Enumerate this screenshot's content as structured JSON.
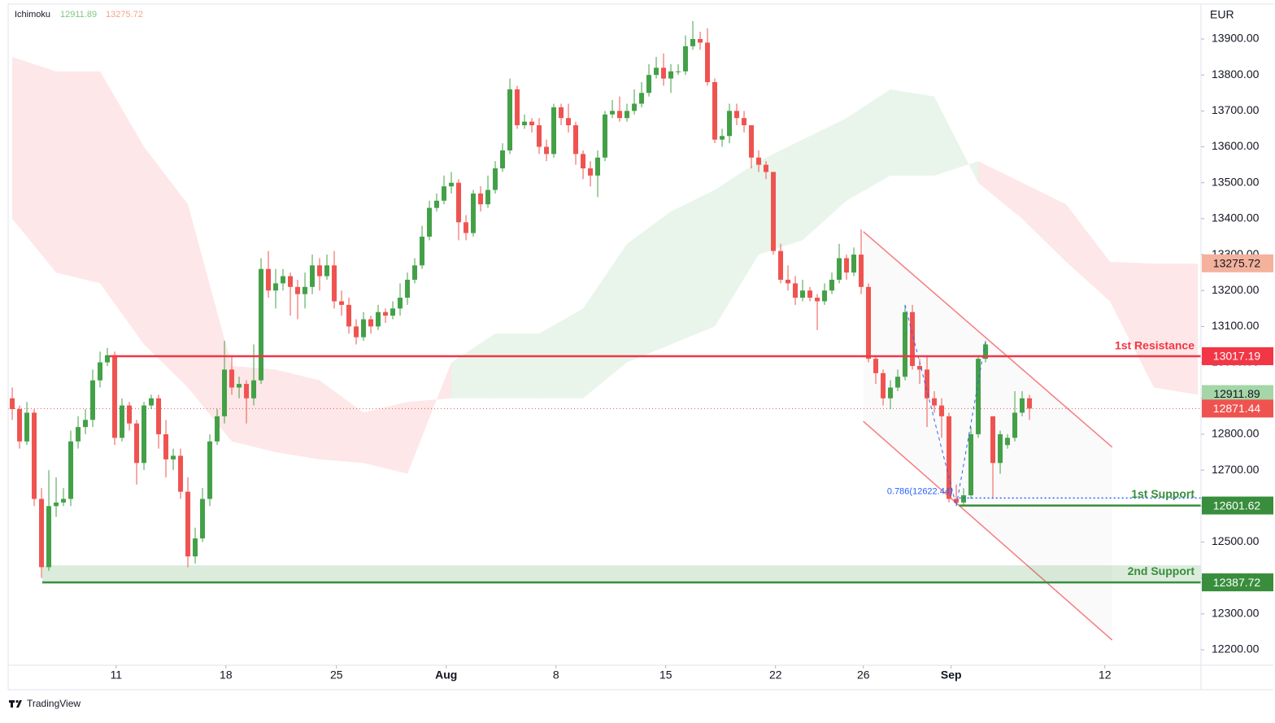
{
  "chart_data": {
    "type": "candlestick",
    "currency": "EUR",
    "legend": {
      "name": "Ichimoku"
    },
    "ylim": [
      12157,
      13997.3
    ],
    "yticks": [
      {
        "value": 12200,
        "label": "12200.00"
      },
      {
        "value": 12300,
        "label": "12300.00"
      },
      {
        "value": 12400,
        "label": "12400.00"
      },
      {
        "value": 12500,
        "label": "12500.00"
      },
      {
        "value": 12600,
        "label": "12600.00"
      },
      {
        "value": 12700,
        "label": "12700.00"
      },
      {
        "value": 12800,
        "label": "12800.00"
      },
      {
        "value": 12900,
        "label": "12900.00"
      },
      {
        "value": 13000,
        "label": "13000.00"
      },
      {
        "value": 13100,
        "label": "13100.00"
      },
      {
        "value": 13200,
        "label": "13200.00"
      },
      {
        "value": 13300,
        "label": "13300.00"
      },
      {
        "value": 13400,
        "label": "13400.00"
      },
      {
        "value": 13500,
        "label": "13500.00"
      },
      {
        "value": 13600,
        "label": "13600.00"
      },
      {
        "value": 13700,
        "label": "13700.00"
      },
      {
        "value": 13800,
        "label": "13800.00"
      },
      {
        "value": 13900,
        "label": "13900.00"
      }
    ],
    "xlim": [
      -0.56,
      162.44
    ],
    "xticks": [
      {
        "value": 14.2,
        "label": "11"
      },
      {
        "value": 29.2,
        "label": "18"
      },
      {
        "value": 44.3,
        "label": "25"
      },
      {
        "value": 59.3,
        "label": "Aug"
      },
      {
        "value": 74.3,
        "label": "8"
      },
      {
        "value": 89.3,
        "label": "15"
      },
      {
        "value": 104.3,
        "label": "22"
      },
      {
        "value": 116.3,
        "label": "26"
      },
      {
        "value": 128.3,
        "label": "Sep"
      },
      {
        "value": 149.3,
        "label": "12"
      }
    ],
    "up_color": "#43a047",
    "down_color": "#ef5350",
    "open": [
      12900,
      12870,
      12780,
      12860,
      12620,
      12430,
      12600,
      12610,
      12620,
      12780,
      12820,
      12840,
      12950,
      13000,
      13020,
      12790,
      12880,
      12830,
      12720,
      12880,
      12900,
      12800,
      12730,
      12740,
      12640,
      12460,
      12510,
      12620,
      12780,
      12850,
      12980,
      12930,
      12940,
      12900,
      12950,
      13260,
      13200,
      13220,
      13240,
      13210,
      13190,
      13210,
      13270,
      13240,
      13270,
      13170,
      13160,
      13100,
      13070,
      13120,
      13100,
      13140,
      13130,
      13150,
      13180,
      13230,
      13270,
      13350,
      13430,
      13450,
      13490,
      13500,
      13390,
      13360,
      13470,
      13440,
      13480,
      13540,
      13590,
      13760,
      13660,
      13670,
      13660,
      13600,
      13580,
      13710,
      13680,
      13660,
      13580,
      13540,
      13520,
      13570,
      13690,
      13700,
      13680,
      13700,
      13720,
      13750,
      13800,
      13820,
      13790,
      13810,
      13810,
      13880,
      13900,
      13890,
      13780,
      13620,
      13630,
      13700,
      13680,
      13660,
      13570,
      13550,
      13530,
      13310,
      13230,
      13220,
      13180,
      13200,
      13180,
      13170,
      13200,
      13230,
      13290,
      13250,
      13300,
      13210,
      13010,
      12970,
      12900,
      12930,
      12960,
      13140,
      12990,
      12980,
      12900,
      12880,
      12850,
      12620,
      12610,
      12630,
      12800,
      13010,
      12850,
      12720,
      12770,
      12790,
      12860,
      12900
    ],
    "high": [
      12930,
      12880,
      12890,
      12870,
      12650,
      12700,
      12680,
      12650,
      12810,
      12850,
      12870,
      12980,
      13030,
      13040,
      13030,
      12900,
      12890,
      12840,
      12890,
      12910,
      12910,
      12840,
      12760,
      12760,
      12680,
      12540,
      12650,
      12800,
      12870,
      13060,
      13020,
      12960,
      12950,
      13050,
      13290,
      13310,
      13260,
      13260,
      13250,
      13230,
      13250,
      13300,
      13290,
      13300,
      13310,
      13200,
      13180,
      13120,
      13140,
      13130,
      13160,
      13150,
      13170,
      13220,
      13250,
      13290,
      13380,
      13450,
      13470,
      13520,
      13530,
      13510,
      13410,
      13480,
      13490,
      13520,
      13560,
      13610,
      13790,
      13770,
      13690,
      13680,
      13680,
      13620,
      13720,
      13720,
      13720,
      13670,
      13590,
      13560,
      13590,
      13700,
      13730,
      13740,
      13720,
      13760,
      13780,
      13830,
      13850,
      13860,
      13830,
      13830,
      13910,
      13950,
      13920,
      13930,
      13790,
      13650,
      13720,
      13720,
      13700,
      13660,
      13590,
      13560,
      13530,
      13330,
      13270,
      13240,
      13230,
      13210,
      13190,
      13220,
      13250,
      13330,
      13300,
      13320,
      13370,
      13220,
      13020,
      12980,
      12950,
      12980,
      13160,
      13160,
      13010,
      13020,
      12920,
      12900,
      12860,
      12660,
      12650,
      12820,
      13020,
      13060,
      12850,
      12810,
      12800,
      12920,
      12920,
      12910
    ],
    "low": [
      12840,
      12760,
      12770,
      12600,
      12400,
      12420,
      12570,
      12600,
      12600,
      12760,
      12800,
      12820,
      12930,
      12990,
      12770,
      12780,
      12810,
      12660,
      12700,
      12870,
      12760,
      12680,
      12700,
      12620,
      12430,
      12440,
      12500,
      12600,
      12770,
      12830,
      12910,
      12900,
      12830,
      12880,
      12940,
      13180,
      13150,
      13200,
      13130,
      13120,
      13150,
      13190,
      13200,
      13230,
      13150,
      13130,
      13080,
      13050,
      13060,
      13080,
      13090,
      13110,
      13120,
      13130,
      13160,
      13220,
      13260,
      13340,
      13420,
      13440,
      13470,
      13340,
      13340,
      13350,
      13420,
      13430,
      13470,
      13530,
      13580,
      13650,
      13650,
      13640,
      13580,
      13560,
      13570,
      13660,
      13640,
      13550,
      13510,
      13490,
      13460,
      13560,
      13680,
      13670,
      13670,
      13690,
      13710,
      13740,
      13790,
      13770,
      13750,
      13800,
      13800,
      13870,
      13870,
      13770,
      13610,
      13600,
      13610,
      13660,
      13640,
      13540,
      13530,
      13510,
      13300,
      13220,
      13200,
      13160,
      13170,
      13170,
      13090,
      13160,
      13190,
      13220,
      13230,
      13240,
      13190,
      13000,
      12940,
      12880,
      12870,
      12920,
      12950,
      12980,
      12940,
      12820,
      12860,
      12790,
      12610,
      12600,
      12600,
      12620,
      12790,
      13000,
      12620,
      12690,
      12760,
      12780,
      12850,
      12840
    ],
    "close": [
      12870,
      12780,
      12860,
      12620,
      12430,
      12600,
      12610,
      12620,
      12780,
      12820,
      12840,
      12950,
      13000,
      13020,
      12790,
      12880,
      12830,
      12720,
      12880,
      12900,
      12800,
      12730,
      12740,
      12640,
      12460,
      12510,
      12620,
      12780,
      12850,
      12980,
      12930,
      12940,
      12900,
      12950,
      13260,
      13200,
      13220,
      13240,
      13210,
      13190,
      13210,
      13270,
      13240,
      13270,
      13170,
      13160,
      13100,
      13070,
      13120,
      13100,
      13140,
      13130,
      13150,
      13180,
      13230,
      13270,
      13350,
      13430,
      13450,
      13490,
      13500,
      13390,
      13360,
      13470,
      13440,
      13480,
      13540,
      13590,
      13760,
      13660,
      13670,
      13660,
      13600,
      13580,
      13710,
      13680,
      13660,
      13580,
      13540,
      13520,
      13570,
      13690,
      13700,
      13680,
      13700,
      13720,
      13750,
      13800,
      13820,
      13790,
      13810,
      13810,
      13880,
      13900,
      13890,
      13780,
      13620,
      13630,
      13700,
      13680,
      13660,
      13570,
      13550,
      13530,
      13310,
      13230,
      13220,
      13180,
      13200,
      13180,
      13170,
      13200,
      13230,
      13290,
      13250,
      13300,
      13210,
      13010,
      12970,
      12900,
      12930,
      12960,
      13140,
      12990,
      12980,
      12900,
      12880,
      12850,
      12620,
      12610,
      12630,
      12800,
      13010,
      13050,
      12720,
      12800,
      12790,
      12860,
      12900,
      12871.44
    ],
    "ichimoku": {
      "lead_a": 12911.89,
      "lead_b": 13275.72,
      "up_color": "#4caf50",
      "down_color": "#f23645",
      "x": [
        0,
        6,
        12,
        18,
        24,
        30,
        36,
        42,
        48,
        54,
        60,
        66,
        72,
        78,
        84,
        90,
        96,
        102,
        108,
        114,
        120,
        126,
        132,
        138,
        144,
        150,
        156,
        162
      ],
      "span_a": [
        13400,
        13250,
        13220,
        13050,
        12930,
        12780,
        12750,
        12730,
        12720,
        12690,
        13000,
        13080,
        13080,
        13150,
        13330,
        13420,
        13480,
        13560,
        13620,
        13680,
        13760,
        13740,
        13500,
        13400,
        13280,
        13170,
        12930,
        12910
      ],
      "span_b": [
        13850,
        13810,
        13810,
        13600,
        13440,
        12990,
        12980,
        12950,
        12860,
        12890,
        12900,
        12900,
        12900,
        12900,
        13000,
        13050,
        13100,
        13300,
        13340,
        13450,
        13520,
        13520,
        13560,
        13500,
        13440,
        13280,
        13275,
        13275
      ]
    },
    "last_price": 12871.44,
    "levels": [
      {
        "label": "1st Resistance",
        "value": 13017.19,
        "color": "#f23645",
        "x_start": 13.3
      },
      {
        "label": "1st Support",
        "value": 12601.62,
        "color": "#388e3c",
        "x_start": 129.4
      },
      {
        "label": "2nd Support",
        "value": 12387.72,
        "color": "#388e3c",
        "x_start": 4.1,
        "band_top": 12435
      }
    ],
    "fib": {
      "label": "0.786(12622.44)",
      "value": 12622.44,
      "x_start": 129.4,
      "color": "#2962ff"
    },
    "channel": {
      "x": [
        116.3,
        150.3
      ],
      "upper": [
        13364,
        12764
      ],
      "lower": [
        12836,
        12227
      ],
      "color": "#f77c80"
    },
    "footer": "TradingView"
  }
}
